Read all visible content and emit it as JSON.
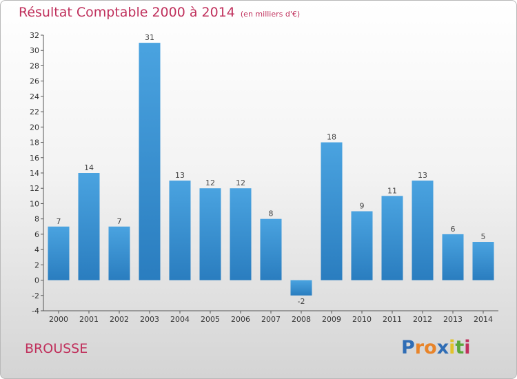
{
  "chart_data": {
    "type": "bar",
    "title": "Résultat Comptable 2000 à 2014",
    "subtitle": "(en milliers d'€)",
    "categories": [
      "2000",
      "2001",
      "2002",
      "2003",
      "2004",
      "2005",
      "2006",
      "2007",
      "2008",
      "2009",
      "2010",
      "2011",
      "2012",
      "2013",
      "2014"
    ],
    "values": [
      7,
      14,
      7,
      31,
      13,
      12,
      12,
      8,
      -2,
      18,
      9,
      11,
      13,
      6,
      5
    ],
    "ylim": [
      -4,
      32
    ],
    "yticks": [
      -4,
      -2,
      0,
      2,
      4,
      6,
      8,
      10,
      12,
      14,
      16,
      18,
      20,
      22,
      24,
      26,
      28,
      30,
      32
    ],
    "grid": false,
    "bar_color": "#4aa3e0",
    "bar_color_dark": "#2a7dbf"
  },
  "commune": "BROUSSE",
  "logo": {
    "letters": [
      "P",
      "r",
      "o",
      "x",
      "i",
      "t",
      "i"
    ],
    "colors": [
      "#2f6db5",
      "#e8842a",
      "#e8842a",
      "#2f6db5",
      "#e1c22a",
      "#5aa83a",
      "#c0305c"
    ]
  }
}
